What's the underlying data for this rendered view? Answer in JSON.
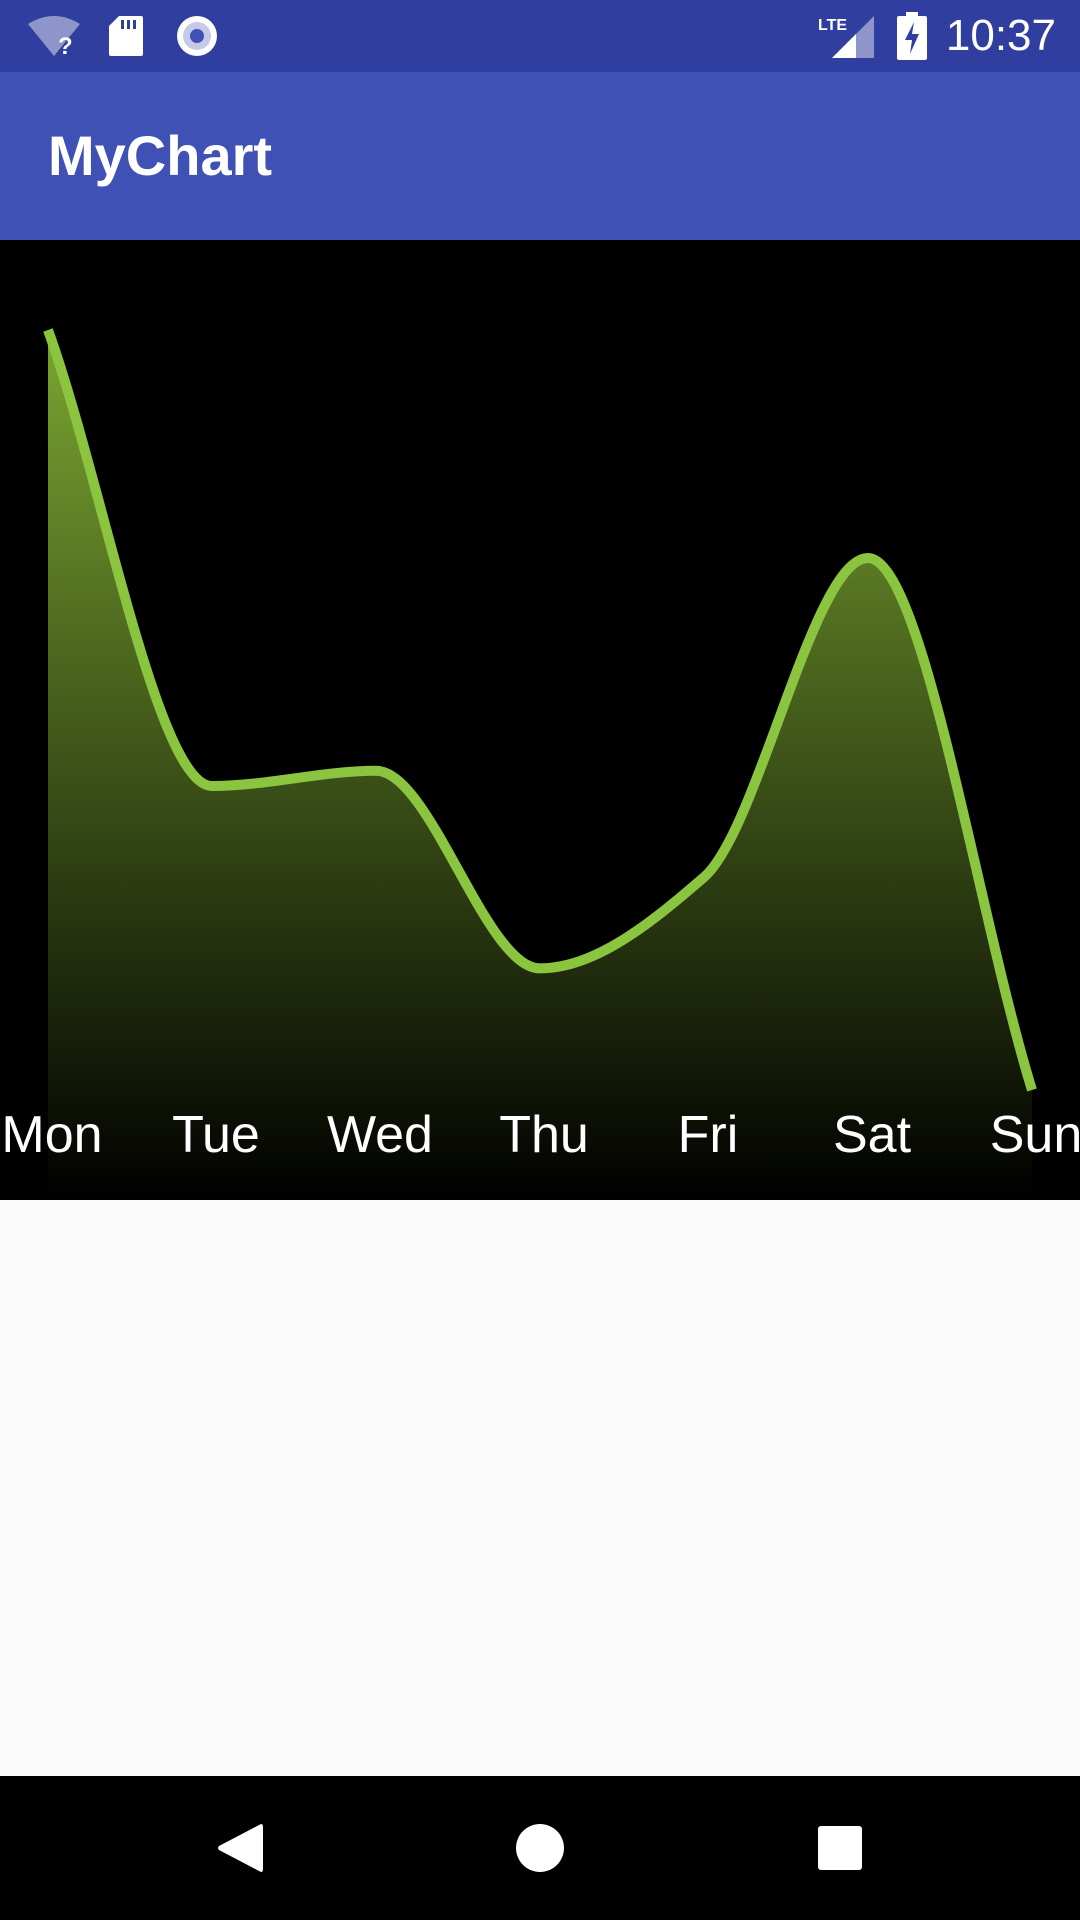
{
  "status_bar": {
    "time": "10:37",
    "background": "#303f9f",
    "icons": [
      "wifi-unknown-icon",
      "sd-card-icon",
      "record-icon",
      "lte-signal-icon",
      "battery-charging-icon"
    ],
    "lte_label": "LTE"
  },
  "app_bar": {
    "title": "MyChart",
    "background": "#3f51b5"
  },
  "colors": {
    "line": "#8bc53f",
    "fill_top": "#7aa531",
    "fill_bottom": "#000000",
    "chart_background": "#000000"
  },
  "chart_data": {
    "type": "area",
    "categories": [
      "Mon",
      "Tue",
      "Wed",
      "Thu",
      "Fri",
      "Sat",
      "Sun"
    ],
    "series": [
      {
        "values": [
          100,
          40,
          42,
          16,
          28,
          70,
          0
        ]
      }
    ],
    "ylim": [
      0,
      100
    ],
    "smooth": true,
    "grid": false,
    "axes_visible": false
  },
  "nav_bar": {
    "buttons": [
      "back-icon",
      "home-icon",
      "recents-icon"
    ]
  }
}
